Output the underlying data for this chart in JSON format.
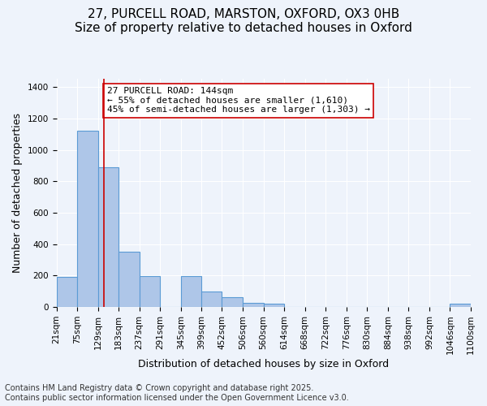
{
  "title_line1": "27, PURCELL ROAD, MARSTON, OXFORD, OX3 0HB",
  "title_line2": "Size of property relative to detached houses in Oxford",
  "xlabel": "Distribution of detached houses by size in Oxford",
  "ylabel": "Number of detached properties",
  "bar_edges": [
    21,
    75,
    129,
    183,
    237,
    291,
    345,
    399,
    452,
    506,
    560,
    614,
    668,
    722,
    776,
    830,
    884,
    938,
    992,
    1046,
    1100
  ],
  "bar_heights": [
    190,
    1120,
    890,
    350,
    195,
    0,
    195,
    100,
    60,
    25,
    20,
    0,
    0,
    0,
    0,
    0,
    0,
    0,
    0,
    20
  ],
  "bar_color": "#aec6e8",
  "bar_edgecolor": "#5b9bd5",
  "bar_linewidth": 0.8,
  "property_size": 144,
  "red_line_color": "#cc0000",
  "annotation_text": "27 PURCELL ROAD: 144sqm\n← 55% of detached houses are smaller (1,610)\n45% of semi-detached houses are larger (1,303) →",
  "annotation_box_color": "#ffffff",
  "annotation_box_edgecolor": "#cc0000",
  "ylim": [
    0,
    1450
  ],
  "yticks": [
    0,
    200,
    400,
    600,
    800,
    1000,
    1200,
    1400
  ],
  "bg_color": "#eef3fb",
  "grid_color": "#ffffff",
  "footer_line1": "Contains HM Land Registry data © Crown copyright and database right 2025.",
  "footer_line2": "Contains public sector information licensed under the Open Government Licence v3.0.",
  "title_fontsize": 11,
  "subtitle_fontsize": 10,
  "axis_label_fontsize": 9,
  "tick_fontsize": 7.5,
  "annotation_fontsize": 8,
  "footer_fontsize": 7
}
